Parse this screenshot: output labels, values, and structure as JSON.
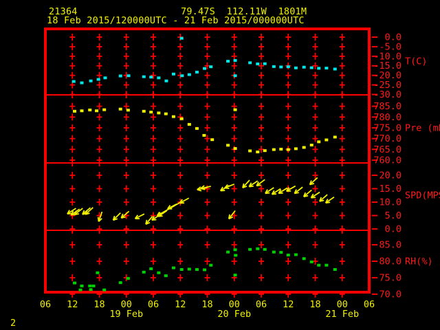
{
  "header": {
    "station_id": "21364",
    "location": "79.47S  112.11W  1801M",
    "time_range": "18 Feb 2015/120000UTC - 21 Feb 2015/000000UTC"
  },
  "footer": {
    "page_number": "2"
  },
  "colors": {
    "background": "#000000",
    "frame": "#ff0000",
    "axis_text": "#ff1a1a",
    "header_text": "#f0f000",
    "temperature": "#00e8e8",
    "pressure": "#f0f000",
    "wind": "#f0f000",
    "humidity": "#00d200"
  },
  "x_axis": {
    "hours_span": 72,
    "tick_interval_hours": 6,
    "tick_labels": [
      "06",
      "12",
      "18",
      "00",
      "06",
      "12",
      "18",
      "00",
      "06",
      "12",
      "18",
      "00",
      "06"
    ],
    "date_labels": [
      {
        "label": "19 Feb",
        "hour": 18
      },
      {
        "label": "20 Feb",
        "hour": 42
      },
      {
        "label": "21 Feb",
        "hour": 66
      }
    ]
  },
  "chart_data": [
    {
      "type": "scatter",
      "name": "temperature",
      "unit_label": "T(C)",
      "unit_label_value": -12.5,
      "color_key": "temperature",
      "ylim": [
        -30.2,
        3.6
      ],
      "yticks": [
        0,
        -5,
        -10,
        -15,
        -20,
        -25,
        -30
      ],
      "points": [
        [
          6.3,
          -23.2
        ],
        [
          8.1,
          -23.9
        ],
        [
          10.1,
          -22.9
        ],
        [
          11.8,
          -22.1
        ],
        [
          13.3,
          -21.3
        ],
        [
          16.7,
          -20.3
        ],
        [
          18.5,
          -20.2
        ],
        [
          21.9,
          -20.7
        ],
        [
          23.5,
          -20.9
        ],
        [
          25.2,
          -21.3
        ],
        [
          26.9,
          -22.9
        ],
        [
          28.5,
          -19.3
        ],
        [
          30.4,
          -20.2
        ],
        [
          32.0,
          -19.6
        ],
        [
          33.7,
          -18.3
        ],
        [
          35.4,
          -16.4
        ],
        [
          36.8,
          -15.5
        ],
        [
          40.6,
          -12.6
        ],
        [
          42.2,
          -12.2
        ],
        [
          45.5,
          -13.4
        ],
        [
          47.2,
          -14.0
        ],
        [
          48.8,
          -13.9
        ],
        [
          50.8,
          -15.4
        ],
        [
          52.4,
          -15.6
        ],
        [
          54.0,
          -15.5
        ],
        [
          55.7,
          -16.1
        ],
        [
          57.5,
          -15.7
        ],
        [
          59.2,
          -16.0
        ],
        [
          60.8,
          -16.3
        ],
        [
          62.5,
          -16.2
        ],
        [
          64.4,
          -16.7
        ],
        [
          30.3,
          -0.6
        ],
        [
          42.2,
          -20.2
        ]
      ]
    },
    {
      "type": "scatter",
      "name": "pressure",
      "unit_label": "Pre (mb)",
      "unit_label_value": 775,
      "color_key": "pressure",
      "ylim": [
        758.7,
        790.3
      ],
      "yticks": [
        785,
        780,
        775,
        770,
        765,
        760
      ],
      "points": [
        [
          6.5,
          782.7
        ],
        [
          8.1,
          782.9
        ],
        [
          9.9,
          783.3
        ],
        [
          11.4,
          782.9
        ],
        [
          13.1,
          783.4
        ],
        [
          16.7,
          783.7
        ],
        [
          18.4,
          783.2
        ],
        [
          21.9,
          782.7
        ],
        [
          23.5,
          782.3
        ],
        [
          25.2,
          781.9
        ],
        [
          26.8,
          781.5
        ],
        [
          28.5,
          780.2
        ],
        [
          30.3,
          779.2
        ],
        [
          32.0,
          776.6
        ],
        [
          33.7,
          774.7
        ],
        [
          35.3,
          771.5
        ],
        [
          37.1,
          769.5
        ],
        [
          40.6,
          766.9
        ],
        [
          42.2,
          765.4
        ],
        [
          45.5,
          764.3
        ],
        [
          47.2,
          763.8
        ],
        [
          48.8,
          764.4
        ],
        [
          50.8,
          764.9
        ],
        [
          52.4,
          765.1
        ],
        [
          54.0,
          764.9
        ],
        [
          55.7,
          765.3
        ],
        [
          57.5,
          765.9
        ],
        [
          59.2,
          767.0
        ],
        [
          60.8,
          768.5
        ],
        [
          62.5,
          769.4
        ],
        [
          64.4,
          770.7
        ],
        [
          42.2,
          783.4
        ]
      ]
    },
    {
      "type": "vector",
      "name": "wind_speed",
      "unit_label": "SPD(MPS)",
      "unit_label_value": 12.5,
      "color_key": "wind",
      "ylim": [
        -0.5,
        24.6
      ],
      "yticks": [
        20,
        15,
        10,
        5,
        0
      ],
      "arrow_default_length": 15,
      "arrows": [
        [
          6.8,
          7.7,
          147
        ],
        [
          7.6,
          7.4,
          145
        ],
        [
          8.3,
          7.7,
          142
        ],
        [
          10.0,
          7.9,
          140
        ],
        [
          10.6,
          8.0,
          138
        ],
        [
          12.6,
          6.4,
          109
        ],
        [
          16.7,
          6.0,
          135
        ],
        [
          18.6,
          6.6,
          139
        ],
        [
          22.0,
          5.6,
          153
        ],
        [
          23.8,
          4.7,
          130
        ],
        [
          25.6,
          5.4,
          147
        ],
        [
          27.0,
          6.8,
          146
        ],
        [
          29.2,
          9.3,
          152
        ],
        [
          30.4,
          10.3,
          150,
          42
        ],
        [
          31.9,
          11.5,
          151
        ],
        [
          36.0,
          15.4,
          169
        ],
        [
          36.8,
          15.9,
          168
        ],
        [
          40.9,
          16.2,
          149
        ],
        [
          42.0,
          16.7,
          158
        ],
        [
          45.4,
          18.2,
          132
        ],
        [
          47.2,
          17.9,
          146
        ],
        [
          48.8,
          18.4,
          143
        ],
        [
          50.8,
          15.4,
          146
        ],
        [
          52.3,
          15.0,
          147
        ],
        [
          53.8,
          15.3,
          148
        ],
        [
          55.6,
          16.0,
          150
        ],
        [
          57.2,
          15.6,
          142
        ],
        [
          59.2,
          14.5,
          140
        ],
        [
          61.0,
          13.7,
          147
        ],
        [
          62.7,
          12.8,
          139
        ],
        [
          64.2,
          11.9,
          145
        ],
        [
          60.5,
          19.1,
          138
        ],
        [
          42.2,
          6.8,
          128
        ]
      ]
    },
    {
      "type": "scatter",
      "name": "relative_humidity",
      "unit_label": "RH(%)",
      "unit_label_value": 80,
      "color_key": "humidity",
      "ylim": [
        70.6,
        89.4
      ],
      "yticks": [
        85,
        80,
        75,
        70
      ],
      "points": [
        [
          6.5,
          73.4
        ],
        [
          7.8,
          71.3
        ],
        [
          8.1,
          72.5
        ],
        [
          9.9,
          72.5
        ],
        [
          10.1,
          71.4
        ],
        [
          10.7,
          72.5
        ],
        [
          11.6,
          76.5
        ],
        [
          13.1,
          71.3
        ],
        [
          16.7,
          73.5
        ],
        [
          18.4,
          74.8
        ],
        [
          21.9,
          76.7
        ],
        [
          23.5,
          77.7
        ],
        [
          25.2,
          76.5
        ],
        [
          26.8,
          75.6
        ],
        [
          28.5,
          78.0
        ],
        [
          30.3,
          77.5
        ],
        [
          32.0,
          77.6
        ],
        [
          33.7,
          77.5
        ],
        [
          35.4,
          77.4
        ],
        [
          36.8,
          78.8
        ],
        [
          40.6,
          82.8
        ],
        [
          42.2,
          83.5
        ],
        [
          42.3,
          81.8
        ],
        [
          45.5,
          83.6
        ],
        [
          47.2,
          83.8
        ],
        [
          48.8,
          83.6
        ],
        [
          50.8,
          82.8
        ],
        [
          52.4,
          82.7
        ],
        [
          54.0,
          81.9
        ],
        [
          55.7,
          82.0
        ],
        [
          57.5,
          80.8
        ],
        [
          59.2,
          79.8
        ],
        [
          60.8,
          78.8
        ],
        [
          62.5,
          78.8
        ],
        [
          64.4,
          77.5
        ],
        [
          42.2,
          75.8
        ]
      ]
    }
  ]
}
